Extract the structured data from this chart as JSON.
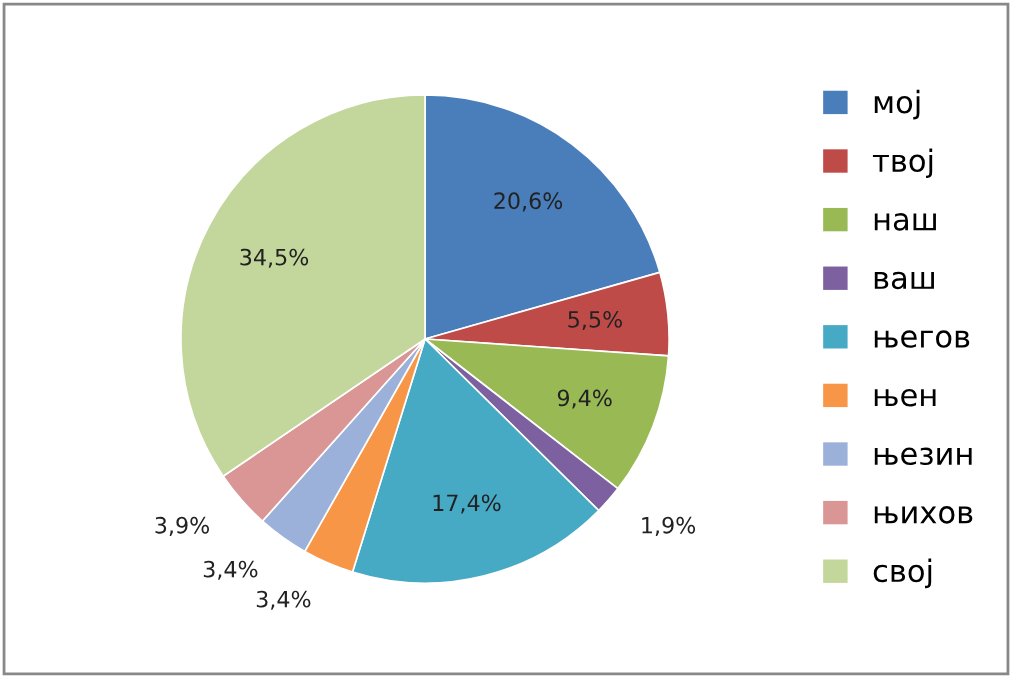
{
  "chart_data": {
    "type": "pie",
    "categories": [
      "мој",
      "твој",
      "наш",
      "ваш",
      "његов",
      "њен",
      "њезин",
      "њихов",
      "свој"
    ],
    "values": [
      20.6,
      5.5,
      9.4,
      1.9,
      17.4,
      3.4,
      3.4,
      3.9,
      34.5
    ],
    "colors": [
      "#4a7ebb",
      "#be4b48",
      "#98b954",
      "#7d60a0",
      "#46aac5",
      "#f79646",
      "#9bb1d9",
      "#d99694",
      "#c3d69b"
    ],
    "value_labels": [
      "20,6%",
      "5,5%",
      "9,4%",
      "1,9%",
      "17,4%",
      "3,4%",
      "3,4%",
      "3,9%",
      "34,5%"
    ],
    "legend": "right"
  }
}
